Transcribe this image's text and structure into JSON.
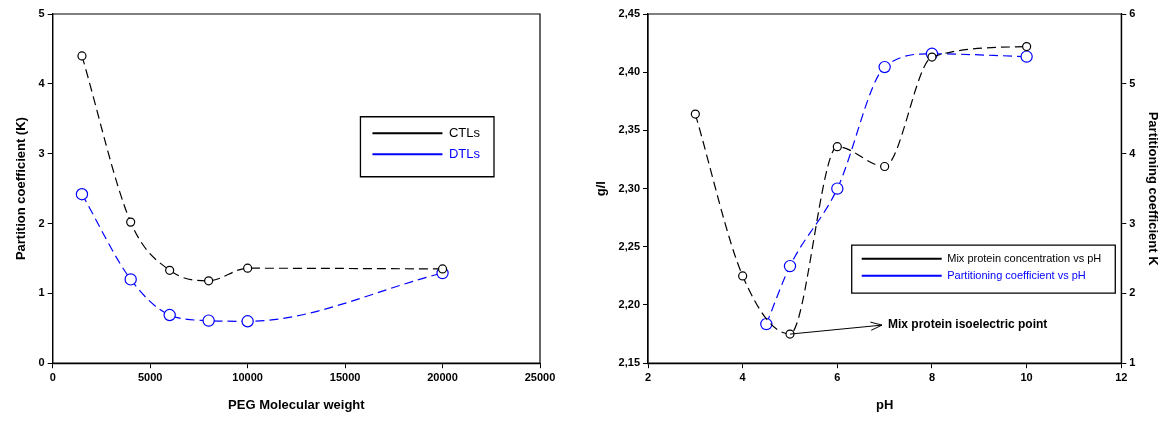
{
  "chart_data": [
    {
      "type": "line",
      "xlabel": "PEG Molecular weight",
      "ylabel": "Partition coefficient (K)",
      "xlim": [
        0,
        25000
      ],
      "xticks": [
        0,
        5000,
        10000,
        15000,
        20000,
        25000
      ],
      "ylim": [
        0,
        5
      ],
      "yticks": [
        0,
        1,
        2,
        3,
        4,
        5
      ],
      "legend": "right",
      "marker": "circle",
      "line_style": "dashed",
      "grid": false,
      "series": [
        {
          "name": "CTLs",
          "color": "#000000",
          "x": [
            1500,
            4000,
            6000,
            8000,
            10000,
            20000
          ],
          "values": [
            4.4,
            2.02,
            1.33,
            1.18,
            1.36,
            1.35
          ]
        },
        {
          "name": "DTLs",
          "color": "#0000ff",
          "x": [
            1500,
            4000,
            6000,
            8000,
            10000,
            20000
          ],
          "values": [
            2.42,
            1.2,
            0.69,
            0.61,
            0.6,
            1.29
          ]
        }
      ]
    },
    {
      "type": "line",
      "xlabel": "pH",
      "ylabel": "g/l",
      "y2label": "Partitioning coefficient K",
      "xlim": [
        2,
        12
      ],
      "xticks": [
        2,
        4,
        6,
        8,
        10,
        12
      ],
      "ylim": [
        2.15,
        2.45
      ],
      "yticks": [
        {
          "value": 2.15,
          "label": "2,15"
        },
        {
          "value": 2.2,
          "label": "2,20"
        },
        {
          "value": 2.25,
          "label": "2,25"
        },
        {
          "value": 2.3,
          "label": "2,30"
        },
        {
          "value": 2.35,
          "label": "2,35"
        },
        {
          "value": 2.4,
          "label": "2,40"
        },
        {
          "value": 2.45,
          "label": "2,45"
        }
      ],
      "y2lim": [
        1,
        6
      ],
      "y2ticks": [
        1,
        2,
        3,
        4,
        5,
        6
      ],
      "legend": "bottom right",
      "marker": "circle",
      "line_style": "dashed",
      "grid": false,
      "annotations": [
        {
          "text": "Mix protein isoelectric point",
          "x": 5,
          "y": 2.175
        }
      ],
      "series": [
        {
          "name": "Mix protein concentration vs pH",
          "color": "#000000",
          "x": [
            3,
            4,
            5,
            6,
            7,
            8,
            10
          ],
          "values": [
            2.364,
            2.225,
            2.175,
            2.336,
            2.319,
            2.413,
            2.422
          ]
        },
        {
          "name": "Partitioning coefficient vs pH",
          "color": "#0000ff",
          "axis": "y2",
          "x": [
            4.5,
            5,
            6,
            7,
            8,
            10
          ],
          "values": [
            1.56,
            2.39,
            3.5,
            5.24,
            5.43,
            5.39
          ]
        }
      ]
    }
  ]
}
